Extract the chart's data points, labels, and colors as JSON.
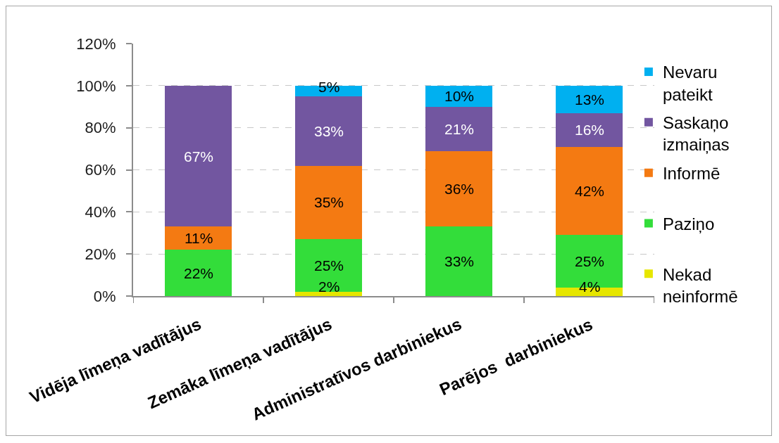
{
  "chart_data": {
    "type": "bar",
    "stacked": true,
    "categories": [
      "Vidēja līmeņa vadītājus",
      "Zemāka līmeņa vadītājus",
      "Administratīvos darbiniekus",
      "Parējos  darbiniekus"
    ],
    "series": [
      {
        "name": "Nekad neinformē",
        "color": "#e6e600",
        "values": [
          null,
          2,
          null,
          4
        ],
        "value_labels": [
          null,
          "2%",
          null,
          "4%"
        ]
      },
      {
        "name": "Paziņo",
        "color": "#33dd3a",
        "values": [
          22,
          25,
          33,
          25
        ],
        "value_labels": [
          "22%",
          "25%",
          "33%",
          "25%"
        ]
      },
      {
        "name": "Informē",
        "color": "#f47a12",
        "values": [
          11,
          35,
          36,
          42
        ],
        "value_labels": [
          "11%",
          "35%",
          "36%",
          "42%"
        ]
      },
      {
        "name": "Saskaņo izmaiņas",
        "color": "#7256a0",
        "values": [
          67,
          33,
          21,
          16
        ],
        "value_labels": [
          "67%",
          "33%",
          "21%",
          "16%"
        ]
      },
      {
        "name": "Nevaru pateikt",
        "color": "#00b0f0",
        "values": [
          null,
          5,
          10,
          13
        ],
        "value_labels": [
          null,
          "5%",
          "10%",
          "13%"
        ]
      }
    ],
    "ylim": [
      0,
      120
    ],
    "yticks": [
      {
        "value": 0,
        "label": "0%"
      },
      {
        "value": 20,
        "label": "20%"
      },
      {
        "value": 40,
        "label": "40%"
      },
      {
        "value": 60,
        "label": "60%"
      },
      {
        "value": 80,
        "label": "80%"
      },
      {
        "value": 100,
        "label": "100%"
      },
      {
        "value": 120,
        "label": "120%"
      }
    ],
    "grid": "y",
    "legend": "right"
  }
}
